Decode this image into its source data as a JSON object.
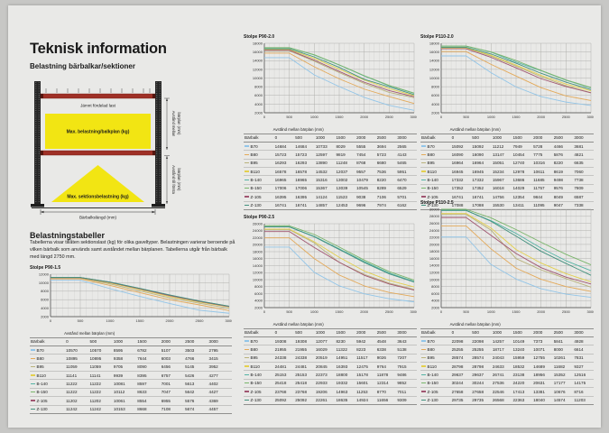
{
  "header": {
    "title": "Teknisk information",
    "subtitle": "Belastning bärbalkar/sektioner"
  },
  "diagram": {
    "load_label": "Jämnt fördelad last",
    "beam_load_label": "Max. belastning/balkplan (kg)",
    "section_load_label": "Max. sektionsbelastning (kg)",
    "beam_length_label": "Bärbalkslängd (mm)",
    "dim_between_lines": [
      "Avstånd mellan",
      "bärplan (mm)"
    ],
    "dim_first_lines": [
      "Avstånd till första",
      "bärplan (mm)"
    ],
    "beam_color": "#9e3026",
    "highlight_color": "#f2e513",
    "post_color": "#262626"
  },
  "tables_section": {
    "heading": "Belastningstabeller",
    "intro": "Tabellerna visar tillåten sektionslast (kg) för olika gaveltyper. Belastningen varierar beroende på vilken bärbalk som används samt avståndet mellan bärplanen. Tabellerna utgår från bärbalk med längd 2750 mm."
  },
  "labels": {
    "table_first_col": "Bärbalk"
  },
  "series_colors": {
    "B70": "#92c5e8",
    "B80": "#e3a959",
    "B95": "#b9b27c",
    "B110": "#e3cf4e",
    "B-140": "#54b3a4",
    "B-150": "#79b56a",
    "Z-105": "#a05570",
    "Z-130": "#41907d"
  },
  "chart_data": [
    {
      "type": "line",
      "title": "Stolpe P90-1.5",
      "xlabel": "Avstånd mellan bärplan (mm)",
      "ylabel": "",
      "x": [
        0,
        500,
        1000,
        1500,
        2000,
        2500,
        3000
      ],
      "ylim": [
        2000,
        12000
      ],
      "ytick": 2000,
      "grid": "on",
      "legend_position": "table-rows",
      "series": [
        {
          "name": "B70",
          "values": [
            10570,
            10570,
            8595,
            6782,
            5107,
            3503,
            2795
          ]
        },
        {
          "name": "B80",
          "values": [
            10895,
            10895,
            9358,
            7644,
            6003,
            4766,
            3415
          ]
        },
        {
          "name": "B95",
          "values": [
            11059,
            11059,
            9705,
            8090,
            6456,
            5145,
            3952
          ]
        },
        {
          "name": "B110",
          "values": [
            11141,
            11141,
            9939,
            8395,
            6757,
            5426,
            4277
          ]
        },
        {
          "name": "B-140",
          "values": [
            11222,
            11222,
            10081,
            8597,
            7001,
            5613,
            4402
          ]
        },
        {
          "name": "B-150",
          "values": [
            11222,
            11222,
            10112,
            8633,
            7047,
            5642,
            4427
          ]
        },
        {
          "name": "Z-105",
          "values": [
            11202,
            11202,
            10061,
            8554,
            6955,
            5576,
            4369
          ]
        },
        {
          "name": "Z-130",
          "values": [
            11242,
            11242,
            10153,
            8668,
            7108,
            5674,
            4457
          ]
        }
      ]
    },
    {
      "type": "line",
      "title": "Stolpe P90-2.0",
      "xlabel": "Avstånd mellan bärplan (mm)",
      "ylabel": "",
      "x": [
        0,
        500,
        1000,
        1500,
        2000,
        2500,
        3000
      ],
      "ylim": [
        2000,
        18000
      ],
      "ytick": 2000,
      "grid": "on",
      "legend_position": "table-rows",
      "series": [
        {
          "name": "B70",
          "values": [
            14684,
            14684,
            10733,
            8029,
            5555,
            3694,
            2565
          ]
        },
        {
          "name": "B80",
          "values": [
            15723,
            15723,
            12597,
            9819,
            7454,
            5723,
            4143
          ]
        },
        {
          "name": "B95",
          "values": [
            16293,
            16293,
            13890,
            11248,
            8768,
            6680,
            5465
          ]
        },
        {
          "name": "B110",
          "values": [
            16578,
            16578,
            14532,
            12037,
            9557,
            7536,
            5951
          ]
        },
        {
          "name": "B-140",
          "values": [
            16965,
            16965,
            15316,
            13002,
            10479,
            8220,
            6470
          ]
        },
        {
          "name": "B-150",
          "values": [
            17006,
            17006,
            15367,
            13039,
            10545,
            8289,
            6529
          ]
        },
        {
          "name": "Z-105",
          "values": [
            16395,
            16395,
            14124,
            11523,
            9038,
            7106,
            5701
          ]
        },
        {
          "name": "Z-130",
          "values": [
            16741,
            16741,
            14857,
            12453,
            9696,
            7974,
            6162
          ]
        }
      ]
    },
    {
      "type": "line",
      "title": "Stolpe P110-2.0",
      "xlabel": "Avstånd mellan bärplan (mm)",
      "ylabel": "",
      "x": [
        0,
        500,
        1000,
        1500,
        2000,
        2500,
        3000
      ],
      "ylim": [
        2000,
        18000
      ],
      "ytick": 2000,
      "grid": "on",
      "legend_position": "table-rows",
      "series": [
        {
          "name": "B70",
          "values": [
            15092,
            15092,
            11212,
            7949,
            5728,
            4466,
            3681
          ]
        },
        {
          "name": "B80",
          "values": [
            16090,
            16090,
            13147,
            10454,
            7775,
            5876,
            4821
          ]
        },
        {
          "name": "B95",
          "values": [
            16964,
            16964,
            15051,
            12740,
            10316,
            8220,
            6635
          ]
        },
        {
          "name": "B110",
          "values": [
            16945,
            16945,
            15234,
            12978,
            10611,
            8619,
            7060
          ]
        },
        {
          "name": "B-140",
          "values": [
            17332,
            17332,
            15967,
            13686,
            11685,
            9498,
            7738
          ]
        },
        {
          "name": "B-150",
          "values": [
            17352,
            17352,
            16018,
            14029,
            11757,
            9576,
            7809
          ]
        },
        {
          "name": "Z-105",
          "values": [
            16741,
            16741,
            14756,
            12354,
            9844,
            8049,
            6587
          ]
        },
        {
          "name": "Z-130",
          "values": [
            17088,
            17088,
            15530,
            13411,
            11095,
            9047,
            7338
          ]
        }
      ]
    },
    {
      "type": "line",
      "title": "Stolpe P90-2.5",
      "xlabel": "Avstånd mellan bärplan (mm)",
      "ylabel": "",
      "x": [
        0,
        500,
        1000,
        1500,
        2000,
        2500,
        3000
      ],
      "ylim": [
        2000,
        26000
      ],
      "ytick": 2000,
      "grid": "on",
      "legend_position": "table-rows",
      "series": [
        {
          "name": "B70",
          "values": [
            19308,
            19308,
            12077,
            8230,
            5942,
            4548,
            3643
          ]
        },
        {
          "name": "B80",
          "values": [
            21955,
            21955,
            16029,
            11322,
            8223,
            6338,
            5138
          ]
        },
        {
          "name": "B95",
          "values": [
            24338,
            24338,
            20519,
            14951,
            11517,
            9026,
            7207
          ]
        },
        {
          "name": "B110",
          "values": [
            24481,
            24481,
            20845,
            16393,
            12475,
            9764,
            7915
          ]
        },
        {
          "name": "B-140",
          "values": [
            25153,
            25153,
            22373,
            18800,
            15178,
            11878,
            9486
          ]
        },
        {
          "name": "B-150",
          "values": [
            25418,
            25418,
            22933,
            19332,
            15601,
            12314,
            9852
          ]
        },
        {
          "name": "Z-105",
          "values": [
            23768,
            23768,
            19206,
            14963,
            11253,
            8770,
            7011
          ]
        },
        {
          "name": "Z-130",
          "values": [
            25092,
            25092,
            22261,
            18635,
            14924,
            11656,
            9309
          ]
        }
      ]
    },
    {
      "type": "line",
      "title": "Stolpe P110-2.5",
      "xlabel": "Avstånd mellan bärplan (mm)",
      "ylabel": "",
      "x": [
        0,
        500,
        1000,
        1500,
        2000,
        2500,
        3000
      ],
      "ylim": [
        2000,
        30000
      ],
      "ytick": 2000,
      "grid": "on",
      "legend_position": "table-rows",
      "series": [
        {
          "name": "B70",
          "values": [
            22098,
            22098,
            14257,
            10149,
            7373,
            5841,
            4928
          ]
        },
        {
          "name": "B80",
          "values": [
            25255,
            25255,
            18717,
            13240,
            10071,
            8000,
            6614
          ]
        },
        {
          "name": "B95",
          "values": [
            28574,
            28574,
            24043,
            15959,
            12755,
            10261,
            7831
          ]
        },
        {
          "name": "B110",
          "values": [
            28798,
            28798,
            24633,
            18532,
            14689,
            11682,
            9327
          ]
        },
        {
          "name": "B-140",
          "values": [
            29637,
            29637,
            26741,
            23138,
            18956,
            15352,
            12516
          ]
        },
        {
          "name": "B-150",
          "values": [
            30244,
            30244,
            27536,
            24220,
            20631,
            17177,
            14175
          ]
        },
        {
          "name": "Z-105",
          "values": [
            27658,
            27658,
            22546,
            17413,
            13381,
            10676,
            8716
          ]
        },
        {
          "name": "Z-130",
          "values": [
            29735,
            29735,
            26568,
            22363,
            18040,
            14574,
            11203
          ]
        }
      ]
    }
  ]
}
